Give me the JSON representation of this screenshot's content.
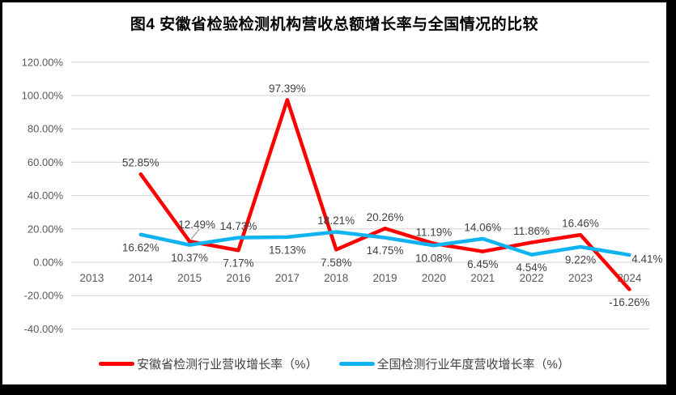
{
  "title": "图4 安徽省检验检测机构营收总额增长率与全国情况的比较",
  "colors": {
    "anhui_red": "#FF0000",
    "national_blue": "#0FB3EF",
    "grid": "#D9D9D9",
    "tick_text": "#595959",
    "data_label_text": "#404040",
    "leader_line": "#999999",
    "frame": "#000000",
    "background": "#FFFFFF"
  },
  "chart_data": {
    "type": "line",
    "title": "图4 安徽省检验检测机构营收总额增长率与全国情况的比较",
    "categories": [
      "2013",
      "2014",
      "2015",
      "2016",
      "2017",
      "2018",
      "2019",
      "2020",
      "2021",
      "2022",
      "2023",
      "2024"
    ],
    "y_ticks": [
      "120.00%",
      "100.00%",
      "80.00%",
      "60.00%",
      "40.00%",
      "20.00%",
      "0.00%",
      "-20.00%",
      "-40.00%"
    ],
    "y_min": -40,
    "y_max": 120,
    "y_step": 20,
    "grid": true,
    "legend_position": "bottom",
    "value_suffix": "%",
    "series": [
      {
        "name": "安徽省检测行业营收增长率（%）",
        "color_key": "anhui_red",
        "values": [
          null,
          52.85,
          12.49,
          7.17,
          97.39,
          7.58,
          20.26,
          11.19,
          6.45,
          11.86,
          16.46,
          -16.26
        ],
        "label_placement": [
          null,
          "above",
          "above-leader",
          "below",
          "above",
          "below",
          "above",
          "above",
          "below",
          "above",
          "above",
          "below"
        ]
      },
      {
        "name": "全国检测行业年度营收增长率（%）",
        "color_key": "national_blue",
        "values": [
          null,
          16.62,
          10.37,
          14.73,
          15.13,
          18.21,
          14.75,
          10.08,
          14.06,
          4.54,
          9.22,
          4.41
        ],
        "label_placement": [
          null,
          "below",
          "below",
          "above",
          "below",
          "above",
          "below",
          "below",
          "above",
          "below",
          "below",
          "right"
        ]
      }
    ]
  },
  "legend": {
    "items": [
      {
        "label": "安徽省检测行业营收增长率（%）",
        "color_key": "anhui_red"
      },
      {
        "label": "全国检测行业年度营收增长率（%）",
        "color_key": "national_blue"
      }
    ]
  }
}
